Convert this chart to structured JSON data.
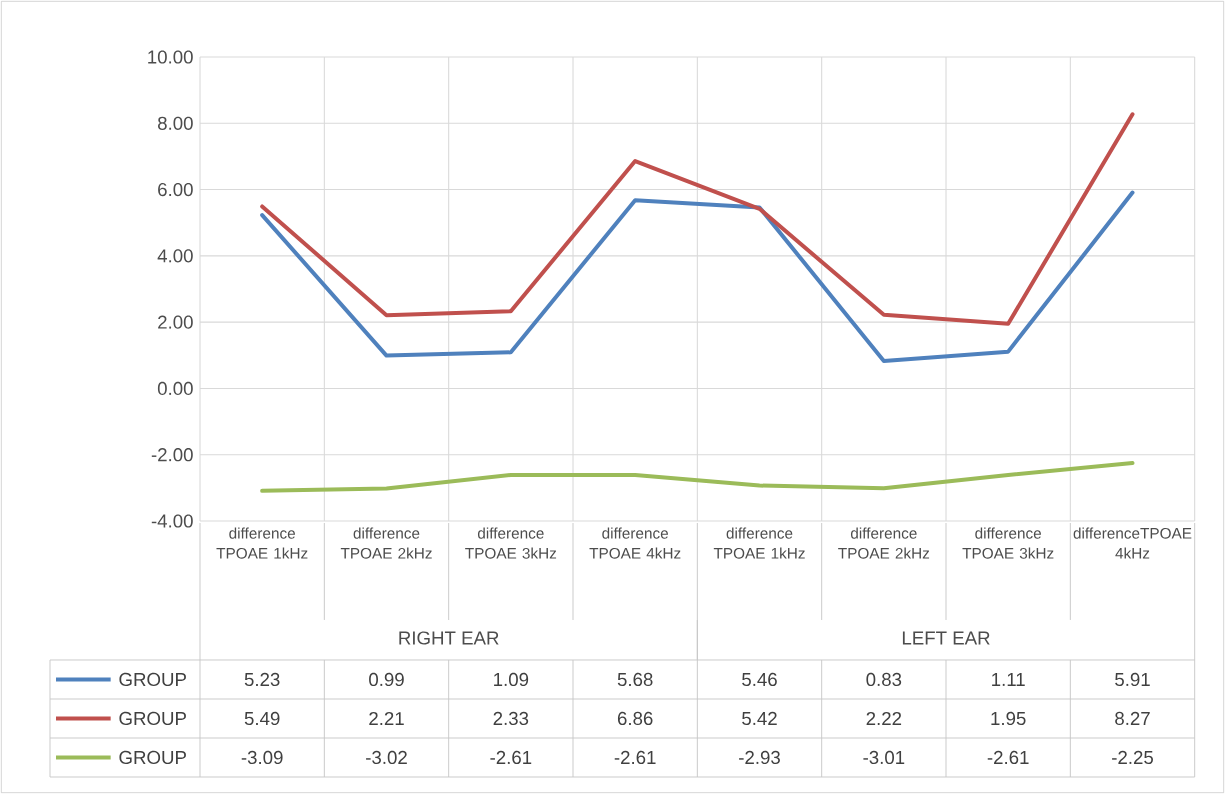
{
  "chart_data": {
    "type": "line",
    "categories": [
      "difference TPOAE 1kHz",
      "difference TPOAE 2kHz",
      "difference TPOAE 3kHz",
      "difference TPOAE 4kHz",
      "difference TPOAE 1kHz",
      "difference TPOAE 2kHz",
      "difference TPOAE 3kHz",
      "differenceTPOAE 4kHz"
    ],
    "series": [
      {
        "name": "GROUP",
        "color": "#4f81bd",
        "values": [
          5.23,
          0.99,
          1.09,
          5.68,
          5.46,
          0.83,
          1.11,
          5.91
        ]
      },
      {
        "name": "GROUP",
        "color": "#c0504d",
        "values": [
          5.49,
          2.21,
          2.33,
          6.86,
          5.42,
          2.22,
          1.95,
          8.27
        ]
      },
      {
        "name": "GROUP",
        "color": "#9bbb59",
        "values": [
          -3.09,
          -3.02,
          -2.61,
          -2.61,
          -2.93,
          -3.01,
          -2.61,
          -2.25
        ]
      }
    ],
    "annotations": [
      "RIGHT EAR",
      "LEFT EAR"
    ],
    "ylim": [
      -4,
      10
    ],
    "yticks": [
      {
        "value": -4,
        "label": "-4.00"
      },
      {
        "value": -2,
        "label": "-2.00"
      },
      {
        "value": 0,
        "label": "0.00"
      },
      {
        "value": 2,
        "label": "2.00"
      },
      {
        "value": 4,
        "label": "4.00"
      },
      {
        "value": 6,
        "label": "6.00"
      },
      {
        "value": 8,
        "label": "8.00"
      },
      {
        "value": 10,
        "label": "10.00"
      }
    ],
    "grid": true,
    "legend": "bottom",
    "data_labels": true,
    "line_style": "solid",
    "marker": "none"
  }
}
